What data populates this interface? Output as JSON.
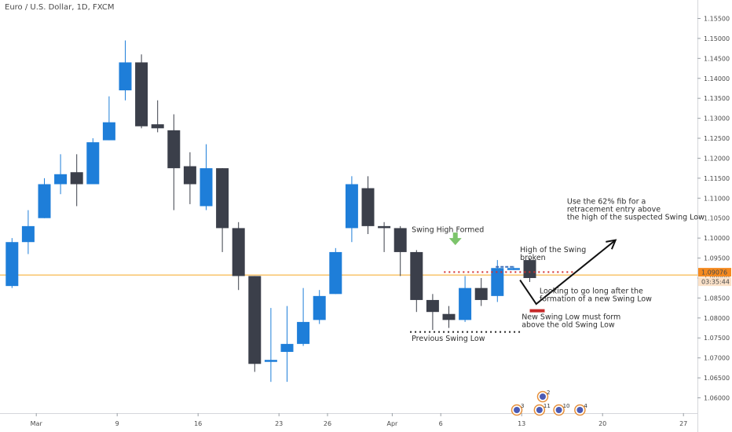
{
  "chart_title": "Euro / U.S. Dollar, 1D, FXCM",
  "colors": {
    "up": "#1e7ed9",
    "down": "#3b3f4a",
    "price_line": "#f5a623",
    "price_label": "#f58a1f",
    "red_dotted": "#d32f2f",
    "red_mark": "#c62828",
    "green_arrow": "#7cc46b",
    "blue_dash": "#3f6fb8",
    "axis_text": "#4a4a4a"
  },
  "chart_data": {
    "type": "candlestick",
    "title": "Euro / U.S. Dollar, 1D, FXCM",
    "ylim": [
      1.056,
      1.16
    ],
    "y_ticks": [
      "1.15500",
      "1.15000",
      "1.14500",
      "1.14000",
      "1.13500",
      "1.13000",
      "1.12500",
      "1.12000",
      "1.11500",
      "1.11000",
      "1.10500",
      "1.10000",
      "1.09500",
      "1.09000",
      "1.08500",
      "1.08000",
      "1.07500",
      "1.07000",
      "1.06500",
      "1.06000"
    ],
    "x_ticks": [
      {
        "label": "Mar",
        "slot": 2
      },
      {
        "label": "9",
        "slot": 7
      },
      {
        "label": "16",
        "slot": 12
      },
      {
        "label": "23",
        "slot": 17
      },
      {
        "label": "26",
        "slot": 20
      },
      {
        "label": "Apr",
        "slot": 24
      },
      {
        "label": "6",
        "slot": 27
      },
      {
        "label": "13",
        "slot": 32
      },
      {
        "label": "20",
        "slot": 37
      },
      {
        "label": "27",
        "slot": 42
      }
    ],
    "candles": [
      {
        "open": 1.088,
        "close": 1.099,
        "high": 1.1,
        "low": 1.0875
      },
      {
        "open": 1.099,
        "close": 1.103,
        "high": 1.107,
        "low": 1.096
      },
      {
        "open": 1.105,
        "close": 1.1135,
        "high": 1.115,
        "low": 1.105
      },
      {
        "open": 1.1135,
        "close": 1.116,
        "high": 1.121,
        "low": 1.111
      },
      {
        "open": 1.1165,
        "close": 1.1135,
        "high": 1.121,
        "low": 1.108
      },
      {
        "open": 1.1135,
        "close": 1.124,
        "high": 1.125,
        "low": 1.1135
      },
      {
        "open": 1.1245,
        "close": 1.129,
        "high": 1.1355,
        "low": 1.1245
      },
      {
        "open": 1.137,
        "close": 1.144,
        "high": 1.1495,
        "low": 1.1345
      },
      {
        "open": 1.144,
        "close": 1.128,
        "high": 1.146,
        "low": 1.1275
      },
      {
        "open": 1.1285,
        "close": 1.1275,
        "high": 1.1345,
        "low": 1.1265
      },
      {
        "open": 1.127,
        "close": 1.1175,
        "high": 1.131,
        "low": 1.107
      },
      {
        "open": 1.118,
        "close": 1.1135,
        "high": 1.1215,
        "low": 1.1085
      },
      {
        "open": 1.108,
        "close": 1.1175,
        "high": 1.1235,
        "low": 1.107
      },
      {
        "open": 1.1175,
        "close": 1.1025,
        "high": 1.1175,
        "low": 1.0965
      },
      {
        "open": 1.1025,
        "close": 1.0905,
        "high": 1.104,
        "low": 1.087
      },
      {
        "open": 1.0905,
        "close": 1.0685,
        "high": 1.0905,
        "low": 1.0665
      },
      {
        "open": 1.069,
        "close": 1.0695,
        "high": 1.0825,
        "low": 1.064
      },
      {
        "open": 1.0715,
        "close": 1.0735,
        "high": 1.083,
        "low": 1.064
      },
      {
        "open": 1.0735,
        "close": 1.079,
        "high": 1.0875,
        "low": 1.073
      },
      {
        "open": 1.0795,
        "close": 1.0855,
        "high": 1.087,
        "low": 1.0785
      },
      {
        "open": 1.086,
        "close": 1.0965,
        "high": 1.0975,
        "low": 1.086
      },
      {
        "open": 1.1025,
        "close": 1.1135,
        "high": 1.1155,
        "low": 1.099
      },
      {
        "open": 1.1125,
        "close": 1.103,
        "high": 1.1155,
        "low": 1.101
      },
      {
        "open": 1.103,
        "close": 1.1025,
        "high": 1.104,
        "low": 1.0965
      },
      {
        "open": 1.1025,
        "close": 1.0965,
        "high": 1.103,
        "low": 1.0905
      },
      {
        "open": 1.0965,
        "close": 1.0845,
        "high": 1.097,
        "low": 1.0815
      },
      {
        "open": 1.0845,
        "close": 1.0815,
        "high": 1.086,
        "low": 1.077
      },
      {
        "open": 1.081,
        "close": 1.0795,
        "high": 1.083,
        "low": 1.0775
      },
      {
        "open": 1.0795,
        "close": 1.0875,
        "high": 1.0905,
        "low": 1.079
      },
      {
        "open": 1.0875,
        "close": 1.0845,
        "high": 1.09,
        "low": 1.083
      },
      {
        "open": 1.0855,
        "close": 1.0925,
        "high": 1.0945,
        "low": 1.084
      },
      {
        "open": 1.0925,
        "close": 1.0925,
        "high": 1.093,
        "low": 1.092
      },
      {
        "open": 1.0945,
        "close": 1.09,
        "high": 1.095,
        "low": 1.089
      }
    ],
    "current_price": 1.09076,
    "price_label": "1.09076",
    "countdown": "03:35:44",
    "annotations": {
      "swing_high": "Swing High Formed",
      "high_broken_1": "High of the Swing",
      "high_broken_2": "broken",
      "prev_low": "Previous Swing Low",
      "new_low_1": "New Swing Low must form",
      "new_low_2": "above the old Swing Low",
      "looking_1": "Looking to go long after the",
      "looking_2": "formation of a new Swing Low",
      "fib_1": "Use the 62% fib for a",
      "fib_2": "retracement entry above",
      "fib_3": "the high of the suspected Swing Low"
    },
    "event_badges": [
      {
        "label": "2",
        "row": "top",
        "slot": 33.3
      },
      {
        "label": "3",
        "row": "bottom",
        "slot": 31.7
      },
      {
        "label": "11",
        "row": "bottom",
        "slot": 33.1
      },
      {
        "label": "10",
        "row": "bottom",
        "slot": 34.3
      },
      {
        "label": "4",
        "row": "bottom",
        "slot": 35.6
      }
    ]
  }
}
